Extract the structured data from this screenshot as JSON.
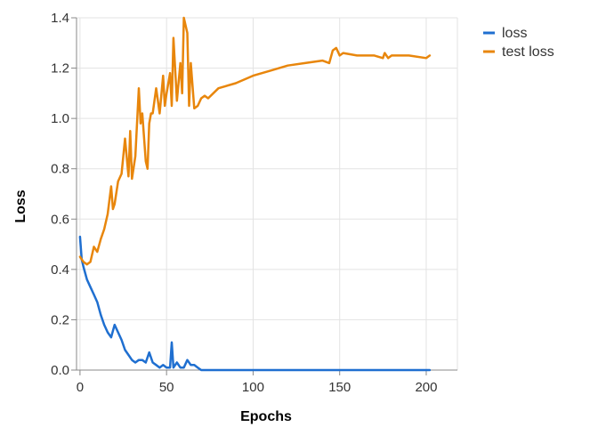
{
  "chart_data": {
    "type": "line",
    "xlabel": "Epochs",
    "ylabel": "Loss",
    "xlim": [
      -2,
      218
    ],
    "ylim": [
      0,
      1.4
    ],
    "x_ticks": [
      "0",
      "50",
      "100",
      "150",
      "200"
    ],
    "x_tick_values": [
      0,
      50,
      100,
      150,
      200
    ],
    "y_ticks": [
      "0.0",
      "0.2",
      "0.4",
      "0.6",
      "0.8",
      "1.0",
      "1.2",
      "1.4"
    ],
    "y_tick_values": [
      0,
      0.2,
      0.4,
      0.6,
      0.8,
      1.0,
      1.2,
      1.4
    ],
    "grid": true,
    "legend_position": "top-right",
    "series": [
      {
        "name": "loss",
        "color": "#1f6fd0",
        "x": [
          0,
          1,
          2,
          4,
          6,
          8,
          10,
          12,
          14,
          16,
          18,
          20,
          22,
          24,
          26,
          28,
          30,
          32,
          34,
          36,
          38,
          40,
          42,
          44,
          46,
          48,
          50,
          52,
          53,
          54,
          56,
          58,
          60,
          62,
          64,
          66,
          68,
          70,
          75,
          80,
          100,
          150,
          202
        ],
        "values": [
          0.53,
          0.44,
          0.41,
          0.36,
          0.33,
          0.3,
          0.27,
          0.22,
          0.18,
          0.15,
          0.13,
          0.18,
          0.15,
          0.12,
          0.08,
          0.06,
          0.04,
          0.03,
          0.04,
          0.04,
          0.03,
          0.07,
          0.03,
          0.02,
          0.01,
          0.02,
          0.01,
          0.01,
          0.11,
          0.01,
          0.03,
          0.01,
          0.01,
          0.04,
          0.02,
          0.02,
          0.01,
          0.0,
          0.0,
          0.0,
          0.0,
          0.0,
          0.0
        ]
      },
      {
        "name": "test loss",
        "color": "#e8860c",
        "x": [
          0,
          2,
          4,
          6,
          8,
          10,
          12,
          14,
          16,
          18,
          19,
          20,
          22,
          24,
          26,
          28,
          29,
          30,
          32,
          34,
          35,
          36,
          38,
          39,
          40,
          41,
          42,
          44,
          46,
          48,
          49,
          50,
          52,
          53,
          54,
          56,
          58,
          59,
          60,
          62,
          63,
          64,
          66,
          68,
          70,
          72,
          74,
          80,
          90,
          100,
          110,
          120,
          130,
          140,
          144,
          146,
          148,
          150,
          152,
          160,
          170,
          175,
          176,
          178,
          180,
          190,
          200,
          202
        ],
        "values": [
          0.45,
          0.43,
          0.42,
          0.43,
          0.49,
          0.47,
          0.52,
          0.56,
          0.62,
          0.73,
          0.64,
          0.66,
          0.75,
          0.78,
          0.92,
          0.77,
          0.95,
          0.76,
          0.85,
          1.12,
          0.98,
          1.02,
          0.83,
          0.8,
          0.98,
          1.02,
          1.02,
          1.12,
          1.02,
          1.17,
          1.05,
          1.1,
          1.18,
          1.05,
          1.32,
          1.07,
          1.22,
          1.1,
          1.4,
          1.34,
          1.05,
          1.22,
          1.04,
          1.05,
          1.08,
          1.09,
          1.08,
          1.12,
          1.14,
          1.17,
          1.19,
          1.21,
          1.22,
          1.23,
          1.22,
          1.27,
          1.28,
          1.25,
          1.26,
          1.25,
          1.25,
          1.24,
          1.26,
          1.24,
          1.25,
          1.25,
          1.24,
          1.25
        ]
      }
    ]
  }
}
